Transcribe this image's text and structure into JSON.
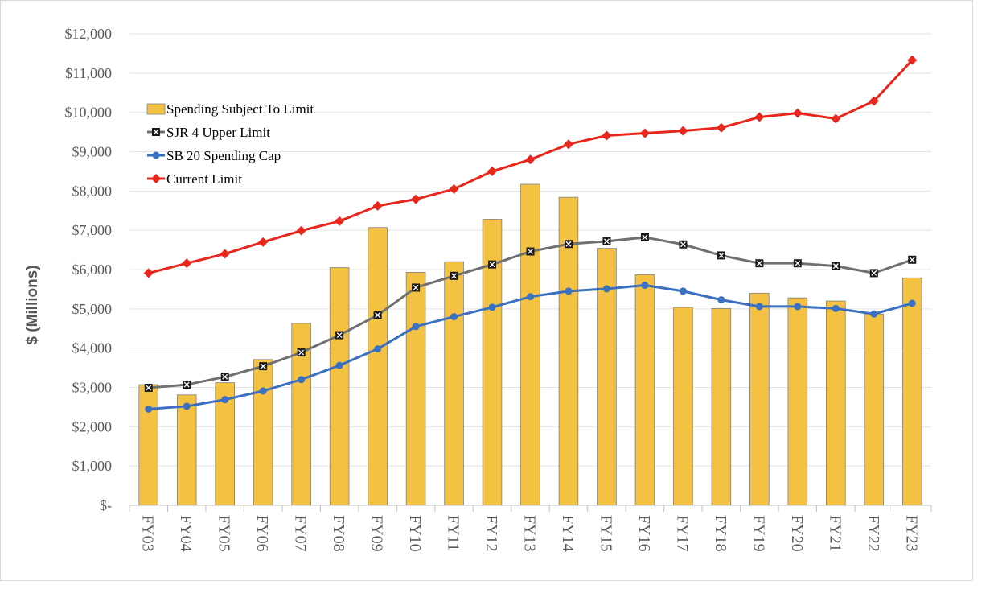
{
  "chart_data": {
    "type": "bar",
    "title": "",
    "xlabel": "",
    "ylabel": "$ (Millions)",
    "ylim": [
      0,
      12000
    ],
    "y_ticks": [
      {
        "value": 0,
        "label": "$-"
      },
      {
        "value": 1000,
        "label": "$1,000"
      },
      {
        "value": 2000,
        "label": "$2,000"
      },
      {
        "value": 3000,
        "label": "$3,000"
      },
      {
        "value": 4000,
        "label": "$4,000"
      },
      {
        "value": 5000,
        "label": "$5,000"
      },
      {
        "value": 6000,
        "label": "$6,000"
      },
      {
        "value": 7000,
        "label": "$7,000"
      },
      {
        "value": 8000,
        "label": "$8,000"
      },
      {
        "value": 9000,
        "label": "$9,000"
      },
      {
        "value": 10000,
        "label": "$10,000"
      },
      {
        "value": 11000,
        "label": "$11,000"
      },
      {
        "value": 12000,
        "label": "$12,000"
      }
    ],
    "grid": true,
    "legend_position": "upper-left",
    "categories": [
      "FY03",
      "FY04",
      "FY05",
      "FY06",
      "FY07",
      "FY08",
      "FY09",
      "FY10",
      "FY11",
      "FY12",
      "FY13",
      "FY14",
      "FY15",
      "FY16",
      "FY17",
      "FY18",
      "FY19",
      "FY20",
      "FY21",
      "FY22",
      "FY23"
    ],
    "series": [
      {
        "name": "Spending Subject To Limit",
        "kind": "bar",
        "color": "#F4C242",
        "values": [
          3070,
          2810,
          3120,
          3710,
          4630,
          6050,
          7070,
          5930,
          6200,
          7280,
          8170,
          7840,
          6540,
          5870,
          5040,
          5010,
          5400,
          5280,
          5200,
          4870,
          5790
        ]
      },
      {
        "name": "SJR 4 Upper Limit",
        "kind": "line",
        "color": "#707070",
        "marker": "x-square",
        "values": [
          2990,
          3070,
          3270,
          3540,
          3890,
          4330,
          4840,
          5540,
          5840,
          6130,
          6460,
          6650,
          6720,
          6820,
          6640,
          6360,
          6160,
          6160,
          6090,
          5910,
          6250
        ]
      },
      {
        "name": "SB 20 Spending Cap",
        "kind": "line",
        "color": "#3B6FBF",
        "marker": "circle",
        "values": [
          2450,
          2520,
          2690,
          2910,
          3200,
          3560,
          3980,
          4550,
          4800,
          5040,
          5310,
          5450,
          5510,
          5600,
          5450,
          5230,
          5060,
          5060,
          5010,
          4870,
          5140
        ]
      },
      {
        "name": "Current Limit",
        "kind": "line",
        "color": "#E8261C",
        "marker": "diamond",
        "values": [
          5910,
          6160,
          6400,
          6700,
          6990,
          7230,
          7620,
          7790,
          8050,
          8500,
          8800,
          9190,
          9410,
          9470,
          9530,
          9610,
          9880,
          9980,
          9840,
          10290,
          11330
        ]
      }
    ]
  }
}
